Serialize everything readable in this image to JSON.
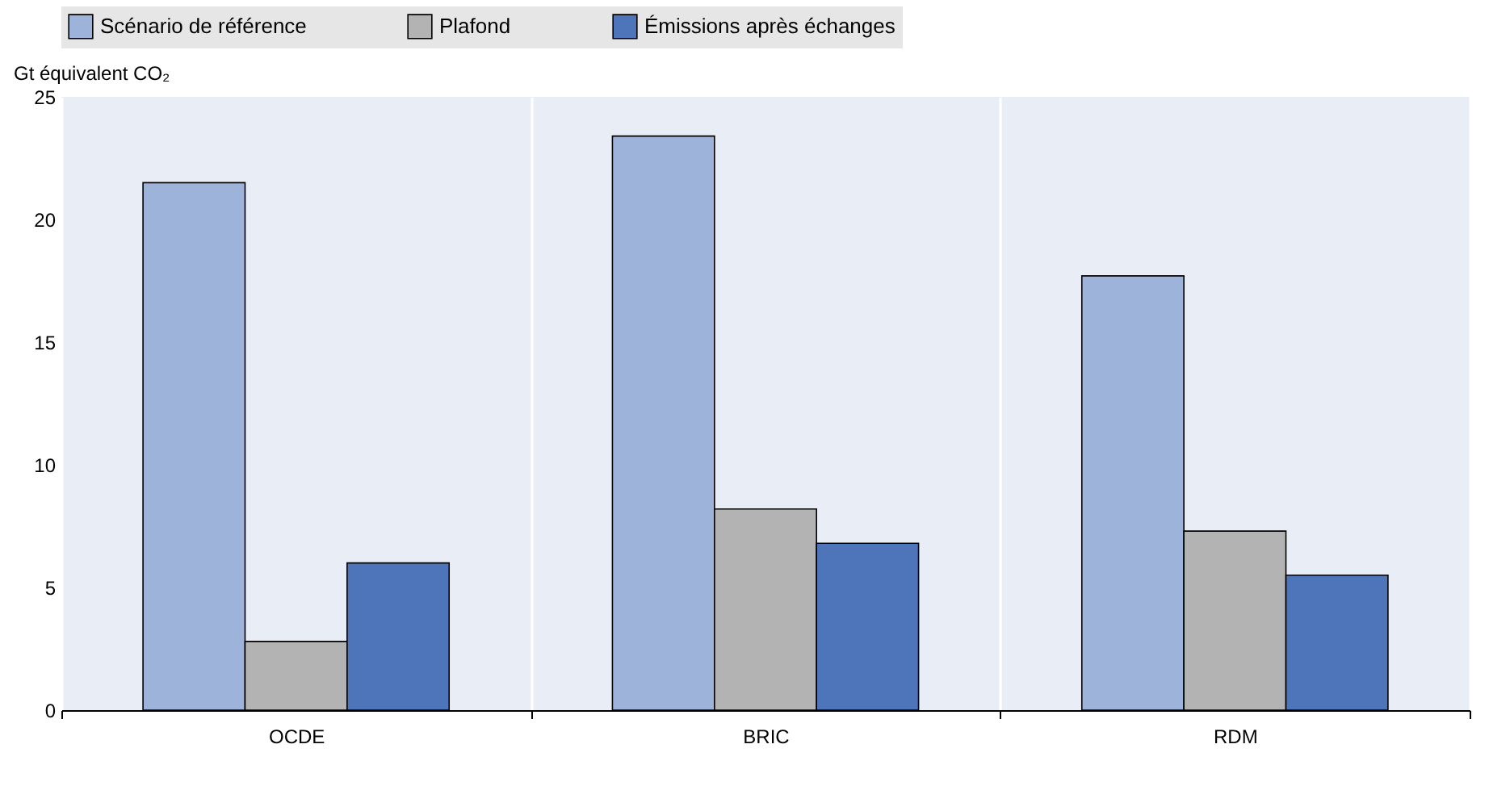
{
  "chart_data": {
    "type": "bar",
    "ylabel": "Gt équivalent CO₂",
    "categories": [
      "OCDE",
      "BRIC",
      "RDM"
    ],
    "series": [
      {
        "name": "Scénario de référence",
        "color": "#9eb3da",
        "values": [
          21.5,
          23.4,
          17.7
        ]
      },
      {
        "name": "Plafond",
        "color": "#b3b3b3",
        "values": [
          2.8,
          8.2,
          7.3
        ]
      },
      {
        "name": "Émissions après échanges",
        "color": "#4e74b9",
        "values": [
          6.0,
          6.8,
          5.5
        ]
      }
    ],
    "ylim": [
      0,
      25
    ],
    "yticks": [
      0,
      5,
      10,
      15,
      20,
      25
    ],
    "grid": "x",
    "legend": "top"
  }
}
